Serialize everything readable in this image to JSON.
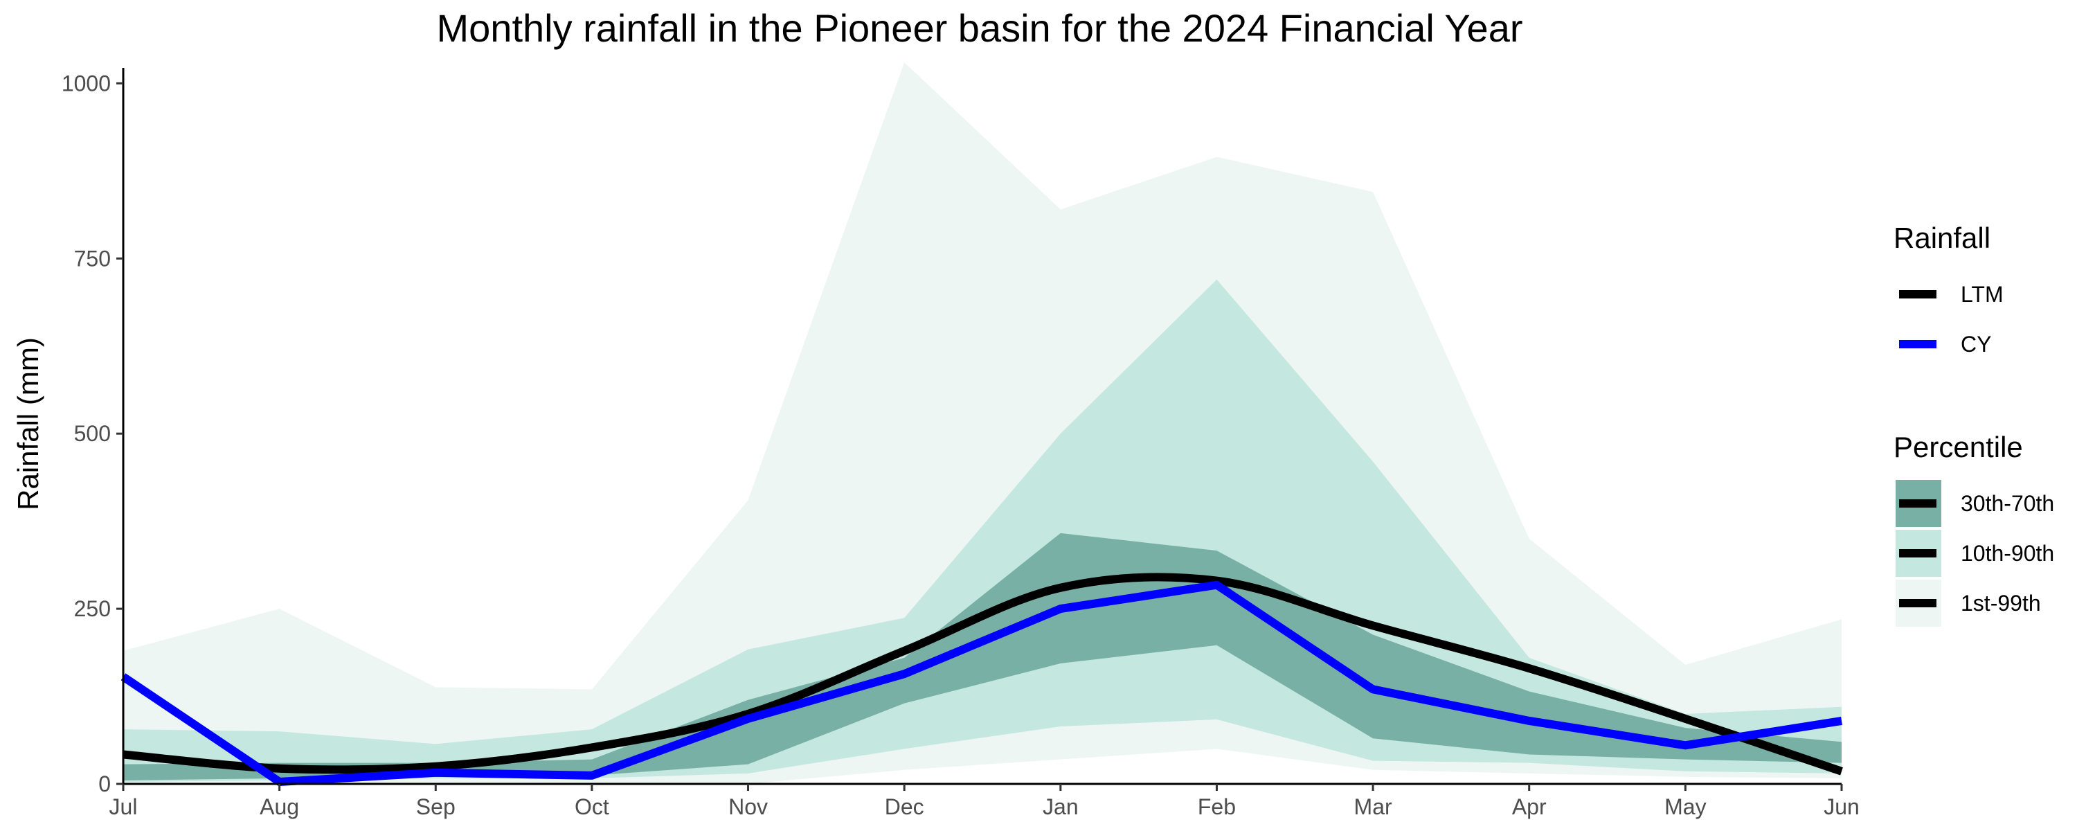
{
  "chart_data": {
    "type": "area",
    "title": "Monthly rainfall in the Pioneer basin for the 2024 Financial Year",
    "xlabel": "",
    "ylabel": "Rainfall (mm)",
    "categories": [
      "Jul",
      "Aug",
      "Sep",
      "Oct",
      "Nov",
      "Dec",
      "Jan",
      "Feb",
      "Mar",
      "Apr",
      "May",
      "Jun"
    ],
    "yticks": [
      0,
      250,
      500,
      750,
      1000
    ],
    "ylim": [
      0,
      1030
    ],
    "grid": false,
    "legend_placement": "right",
    "bands": [
      {
        "name": "1st-99th",
        "color": "#eef6f4",
        "lower": [
          0,
          0,
          0,
          0,
          0,
          20,
          35,
          50,
          20,
          15,
          10,
          8
        ],
        "upper": [
          190,
          250,
          138,
          135,
          405,
          1030,
          820,
          895,
          845,
          350,
          170,
          235
        ]
      },
      {
        "name": "10th-90th",
        "color": "#c4e8df",
        "lower": [
          3,
          5,
          8,
          8,
          15,
          50,
          82,
          92,
          33,
          30,
          18,
          15
        ],
        "upper": [
          78,
          75,
          57,
          78,
          192,
          237,
          500,
          720,
          460,
          180,
          100,
          110
        ]
      },
      {
        "name": "30th-70th",
        "color": "#79b0a6",
        "lower": [
          5,
          8,
          10,
          12,
          28,
          115,
          172,
          198,
          65,
          42,
          35,
          30
        ],
        "upper": [
          28,
          30,
          30,
          35,
          120,
          180,
          358,
          333,
          213,
          132,
          80,
          60
        ]
      }
    ],
    "series": [
      {
        "name": "LTM",
        "color": "#000000",
        "values": [
          42,
          22,
          25,
          52,
          100,
          190,
          280,
          290,
          226,
          165,
          93,
          18
        ]
      },
      {
        "name": "CY",
        "color": "#0000ff",
        "values": [
          153,
          3,
          16,
          12,
          93,
          157,
          250,
          284,
          135,
          90,
          55,
          90
        ]
      }
    ],
    "legends": {
      "rainfall_title": "Rainfall",
      "rainfall_items": [
        "LTM",
        "CY"
      ],
      "percentile_title": "Percentile",
      "percentile_items": [
        "30th-70th",
        "10th-90th",
        "1st-99th"
      ]
    }
  }
}
